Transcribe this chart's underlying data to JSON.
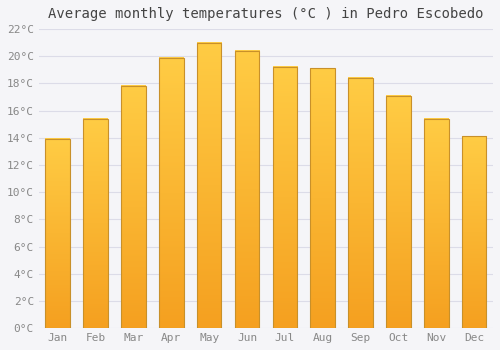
{
  "title": "Average monthly temperatures (°C ) in Pedro Escobedo",
  "months": [
    "Jan",
    "Feb",
    "Mar",
    "Apr",
    "May",
    "Jun",
    "Jul",
    "Aug",
    "Sep",
    "Oct",
    "Nov",
    "Dec"
  ],
  "values": [
    13.9,
    15.4,
    17.8,
    19.9,
    21.0,
    20.4,
    19.2,
    19.1,
    18.4,
    17.1,
    15.4,
    14.1
  ],
  "bar_color_top": "#FFCC44",
  "bar_color_bottom": "#F5A020",
  "bar_edge_color": "#C8902A",
  "background_color": "#f5f5f8",
  "plot_bg_color": "#f5f5f8",
  "grid_color": "#dcdce8",
  "ytick_labels": [
    "0°C",
    "2°C",
    "4°C",
    "6°C",
    "8°C",
    "10°C",
    "12°C",
    "14°C",
    "16°C",
    "18°C",
    "20°C",
    "22°C"
  ],
  "ytick_values": [
    0,
    2,
    4,
    6,
    8,
    10,
    12,
    14,
    16,
    18,
    20,
    22
  ],
  "ylim": [
    0,
    22
  ],
  "title_fontsize": 10,
  "tick_fontsize": 8,
  "title_color": "#444444",
  "tick_color": "#888888",
  "font_family": "monospace",
  "bar_width": 0.65
}
